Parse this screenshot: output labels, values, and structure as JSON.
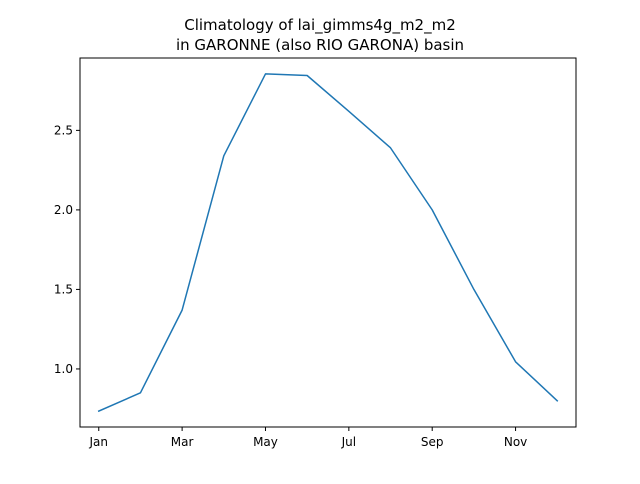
{
  "chart_data": {
    "type": "line",
    "title_lines": [
      "Climatology of lai_gimms4g_m2_m2",
      "in GARONNE (also RIO GARONA) basin"
    ],
    "xlabel": "",
    "ylabel": "",
    "x": [
      1,
      2,
      3,
      4,
      5,
      6,
      7,
      8,
      9,
      10,
      11,
      12
    ],
    "x_tick_values": [
      1,
      3,
      5,
      7,
      9,
      11
    ],
    "x_tick_labels": [
      "Jan",
      "Mar",
      "May",
      "Jul",
      "Sep",
      "Nov"
    ],
    "y_ticks": [
      1.0,
      1.5,
      2.0,
      2.5
    ],
    "y_tick_labels": [
      "1.0",
      "1.5",
      "2.0",
      "2.5"
    ],
    "xlim": [
      0.55,
      12.45
    ],
    "ylim": [
      0.635,
      2.955
    ],
    "grid": false,
    "legend": "none",
    "series": [
      {
        "values": [
          0.735,
          0.85,
          1.37,
          2.34,
          2.855,
          2.845,
          2.62,
          2.39,
          2.0,
          1.5,
          1.045,
          0.8
        ],
        "color": "#1f77b4"
      }
    ]
  }
}
